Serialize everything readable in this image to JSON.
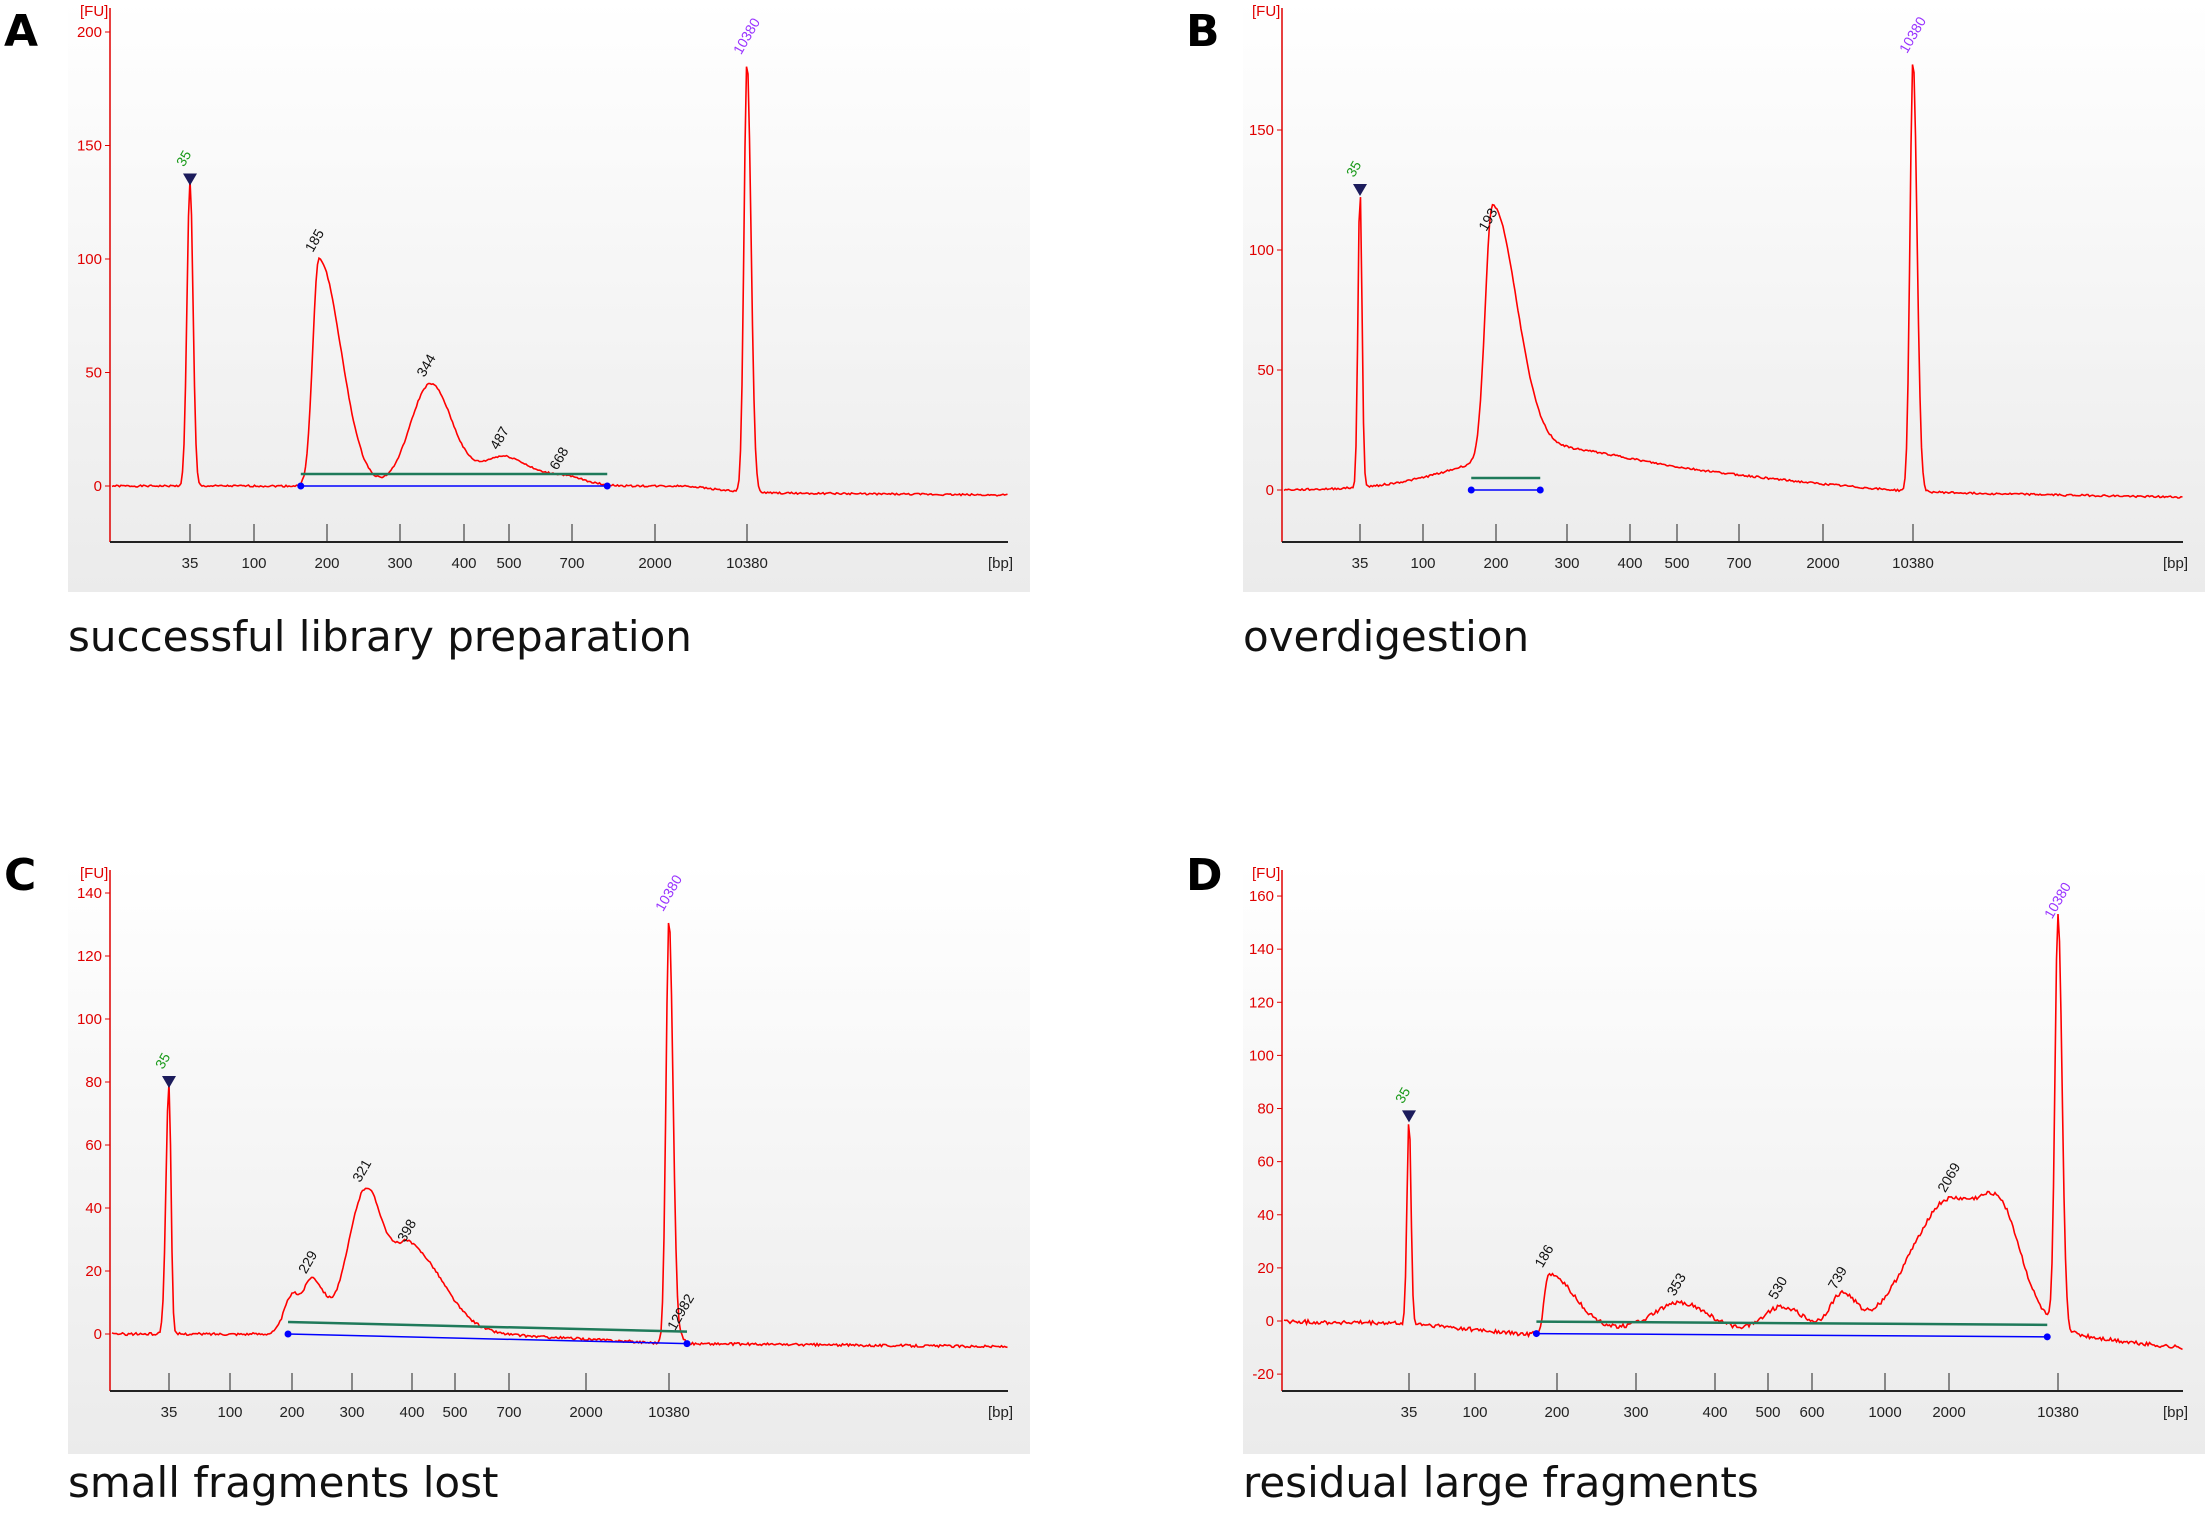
{
  "chart_data": [
    {
      "panel_label": "A",
      "caption": "successful library preparation",
      "type": "line",
      "ylabel": "[FU]",
      "xlabel": "[bp]",
      "y_ticks": [
        "0",
        "50",
        "100",
        "150",
        "200"
      ],
      "ylim": [
        -25,
        205
      ],
      "x_ticks": [
        "35",
        "100",
        "200",
        "300",
        "400",
        "500",
        "700",
        "2000",
        "10380"
      ],
      "peaks": [
        {
          "size": 35,
          "fu": 135,
          "label": "35",
          "kind": "lower-marker"
        },
        {
          "size": 185,
          "fu": 100,
          "label": "185",
          "kind": "sample"
        },
        {
          "size": 344,
          "fu": 45,
          "label": "344",
          "kind": "sample"
        },
        {
          "size": 487,
          "fu": 13,
          "label": "487",
          "kind": "sample"
        },
        {
          "size": 668,
          "fu": 4,
          "label": "668",
          "kind": "sample"
        },
        {
          "size": 10380,
          "fu": 190,
          "label": "10380",
          "kind": "upper-marker"
        }
      ],
      "colors": {
        "trace": "#ff0000",
        "lower_marker": "#1a9a1a",
        "upper_marker": "#9933ff",
        "baseline": "#0000ff",
        "region": "#1f7a5a"
      }
    },
    {
      "panel_label": "B",
      "caption": "overdigestion",
      "type": "line",
      "ylabel": "[FU]",
      "xlabel": "[bp]",
      "y_ticks": [
        "0",
        "50",
        "100",
        "150"
      ],
      "ylim": [
        -20,
        185
      ],
      "x_ticks": [
        "35",
        "100",
        "200",
        "300",
        "400",
        "500",
        "700",
        "2000",
        "10380"
      ],
      "peaks": [
        {
          "size": 35,
          "fu": 125,
          "label": "35",
          "kind": "lower-marker"
        },
        {
          "size": 193,
          "fu": 105,
          "label": "193",
          "kind": "sample"
        },
        {
          "size": 10380,
          "fu": 180,
          "label": "10380",
          "kind": "upper-marker"
        }
      ],
      "colors": {
        "trace": "#ff0000",
        "lower_marker": "#1a9a1a",
        "upper_marker": "#9933ff",
        "baseline": "#0000ff",
        "region": "#1f7a5a"
      }
    },
    {
      "panel_label": "C",
      "caption": "small fragments lost",
      "type": "line",
      "ylabel": "[FU]",
      "xlabel": "[bp]",
      "y_ticks": [
        "0",
        "20",
        "40",
        "60",
        "80",
        "100",
        "120",
        "140"
      ],
      "ylim": [
        -18,
        145
      ],
      "x_ticks": [
        "35",
        "100",
        "200",
        "300",
        "400",
        "500",
        "700",
        "2000",
        "10380"
      ],
      "peaks": [
        {
          "size": 35,
          "fu": 80,
          "label": "35",
          "kind": "lower-marker"
        },
        {
          "size": 229,
          "fu": 17,
          "label": "229",
          "kind": "sample"
        },
        {
          "size": 321,
          "fu": 46,
          "label": "321",
          "kind": "sample"
        },
        {
          "size": 398,
          "fu": 27,
          "label": "398",
          "kind": "sample"
        },
        {
          "size": 10380,
          "fu": 135,
          "label": "10380",
          "kind": "upper-marker"
        },
        {
          "size": 12982,
          "fu": 2,
          "label": "12982",
          "kind": "sample"
        }
      ],
      "colors": {
        "trace": "#ff0000",
        "lower_marker": "#1a9a1a",
        "upper_marker": "#9933ff",
        "baseline": "#0000ff",
        "region": "#1f7a5a"
      }
    },
    {
      "panel_label": "D",
      "caption": "residual large fragments",
      "type": "line",
      "ylabel": "[FU]",
      "xlabel": "[bp]",
      "y_ticks": [
        "-20",
        "0",
        "20",
        "40",
        "60",
        "80",
        "100",
        "120",
        "140",
        "160"
      ],
      "ylim": [
        -27,
        165
      ],
      "x_ticks": [
        "35",
        "100",
        "200",
        "300",
        "400",
        "500",
        "600",
        "1000",
        "2000",
        "10380"
      ],
      "peaks": [
        {
          "size": 35,
          "fu": 78,
          "label": "35",
          "kind": "lower-marker"
        },
        {
          "size": 186,
          "fu": 22,
          "label": "186",
          "kind": "sample"
        },
        {
          "size": 353,
          "fu": 10,
          "label": "353",
          "kind": "sample"
        },
        {
          "size": 530,
          "fu": 9,
          "label": "530",
          "kind": "sample"
        },
        {
          "size": 739,
          "fu": 13,
          "label": "739",
          "kind": "sample"
        },
        {
          "size": 2069,
          "fu": 50,
          "label": "2069",
          "kind": "sample"
        },
        {
          "size": 10380,
          "fu": 155,
          "label": "10380",
          "kind": "upper-marker"
        }
      ],
      "colors": {
        "trace": "#ff0000",
        "lower_marker": "#1a9a1a",
        "upper_marker": "#9933ff",
        "baseline": "#0000ff",
        "region": "#1f7a5a"
      }
    }
  ]
}
